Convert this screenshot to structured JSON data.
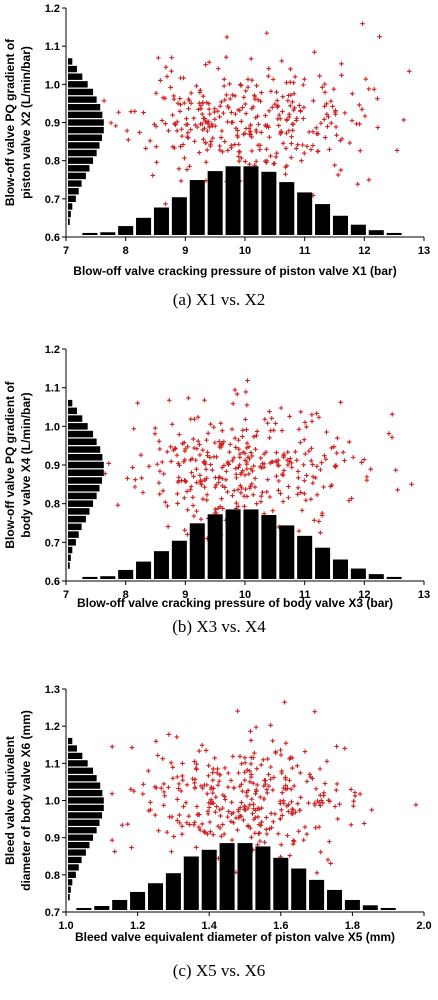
{
  "figure": {
    "captions": [
      "(a)  X1  vs.  X2",
      "(b)  X3  vs.  X4",
      "(c)  X5  vs.  X6"
    ]
  },
  "colors": {
    "scatter": "#cc2222",
    "bars": "#000000",
    "axis": "#000000"
  },
  "chart_data": [
    {
      "type": "scatter",
      "title": "",
      "xlabel": "Blow-off valve cracking pressure of piston valve X1 (bar)",
      "ylabel_lines": [
        "Blow-off valve PQ gradient of",
        "piston valve X2 (L/min/bar)"
      ],
      "xlim": [
        7,
        13
      ],
      "ylim": [
        0.6,
        1.2
      ],
      "xticks": [
        "7",
        "8",
        "9",
        "10",
        "11",
        "12",
        "13"
      ],
      "yticks": [
        "0.6",
        "0.7",
        "0.8",
        "0.9",
        "1.0",
        "1.1",
        "1.2"
      ],
      "marker": "+",
      "x_mean": 10.0,
      "x_sd": 0.95,
      "y_mean": 0.9,
      "y_sd": 0.075,
      "n_points": 360,
      "histogram_x": {
        "bin_centers": [
          7.4,
          7.7,
          8.0,
          8.3,
          8.6,
          8.9,
          9.2,
          9.5,
          9.8,
          10.1,
          10.4,
          10.7,
          11.0,
          11.3,
          11.6,
          11.9,
          12.2,
          12.5
        ],
        "relative_heights": [
          0.03,
          0.04,
          0.13,
          0.25,
          0.4,
          0.55,
          0.8,
          0.93,
          1.0,
          1.0,
          0.92,
          0.77,
          0.62,
          0.45,
          0.28,
          0.15,
          0.07,
          0.03
        ]
      },
      "histogram_y": {
        "bin_centers": [
          0.64,
          0.66,
          0.68,
          0.7,
          0.72,
          0.74,
          0.76,
          0.78,
          0.8,
          0.82,
          0.84,
          0.86,
          0.88,
          0.9,
          0.92,
          0.94,
          0.96,
          0.98,
          1.0,
          1.02,
          1.04,
          1.06
        ],
        "relative_heights": [
          0.05,
          0.08,
          0.12,
          0.22,
          0.3,
          0.38,
          0.5,
          0.6,
          0.7,
          0.8,
          0.88,
          0.95,
          1.0,
          1.0,
          0.96,
          0.9,
          0.8,
          0.7,
          0.55,
          0.4,
          0.25,
          0.12
        ]
      }
    },
    {
      "type": "scatter",
      "title": "",
      "xlabel": "Blow-off valve cracking pressure of body valve X3 (bar)",
      "ylabel_lines": [
        "Blow-off valve PQ gradient of",
        "body valve X4 (L/min/bar)"
      ],
      "xlim": [
        7,
        13
      ],
      "ylim": [
        0.6,
        1.2
      ],
      "xticks": [
        "7",
        "8",
        "9",
        "10",
        "11",
        "12",
        "13"
      ],
      "yticks": [
        "0.6",
        "0.7",
        "0.8",
        "0.9",
        "1.0",
        "1.1",
        "1.2"
      ],
      "marker": "+",
      "x_mean": 10.0,
      "x_sd": 0.95,
      "y_mean": 0.9,
      "y_sd": 0.075,
      "n_points": 360,
      "histogram_x": {
        "bin_centers": [
          7.4,
          7.7,
          8.0,
          8.3,
          8.6,
          8.9,
          9.2,
          9.5,
          9.8,
          10.1,
          10.4,
          10.7,
          11.0,
          11.3,
          11.6,
          11.9,
          12.2,
          12.5
        ],
        "relative_heights": [
          0.03,
          0.04,
          0.13,
          0.25,
          0.4,
          0.55,
          0.8,
          0.93,
          1.0,
          1.0,
          0.92,
          0.77,
          0.62,
          0.45,
          0.28,
          0.15,
          0.07,
          0.03
        ]
      },
      "histogram_y": {
        "bin_centers": [
          0.64,
          0.66,
          0.68,
          0.7,
          0.72,
          0.74,
          0.76,
          0.78,
          0.8,
          0.82,
          0.84,
          0.86,
          0.88,
          0.9,
          0.92,
          0.94,
          0.96,
          0.98,
          1.0,
          1.02,
          1.04,
          1.06
        ],
        "relative_heights": [
          0.05,
          0.08,
          0.12,
          0.22,
          0.3,
          0.38,
          0.5,
          0.6,
          0.7,
          0.8,
          0.88,
          0.95,
          1.0,
          1.0,
          0.96,
          0.9,
          0.8,
          0.7,
          0.55,
          0.4,
          0.25,
          0.12
        ]
      }
    },
    {
      "type": "scatter",
      "title": "",
      "xlabel": "Bleed valve equivalent diameter of piston valve X5 (mm)",
      "ylabel_lines": [
        "Bleed valve equivalent",
        "diameter of body valve X6 (mm)"
      ],
      "xlim": [
        1.0,
        2.0
      ],
      "ylim": [
        0.7,
        1.3
      ],
      "xticks": [
        "1.0",
        "1.2",
        "1.4",
        "1.6",
        "1.8",
        "2.0"
      ],
      "yticks": [
        "0.7",
        "0.8",
        "0.9",
        "1.0",
        "1.1",
        "1.2",
        "1.3"
      ],
      "marker": "+",
      "x_mean": 1.5,
      "x_sd": 0.15,
      "y_mean": 1.0,
      "y_sd": 0.08,
      "n_points": 360,
      "histogram_x": {
        "bin_centers": [
          1.05,
          1.1,
          1.15,
          1.2,
          1.25,
          1.3,
          1.35,
          1.4,
          1.45,
          1.5,
          1.55,
          1.6,
          1.65,
          1.7,
          1.75,
          1.8,
          1.85,
          1.9
        ],
        "relative_heights": [
          0.03,
          0.06,
          0.15,
          0.27,
          0.4,
          0.55,
          0.8,
          0.9,
          1.0,
          1.0,
          0.95,
          0.78,
          0.62,
          0.45,
          0.3,
          0.15,
          0.07,
          0.03
        ]
      },
      "histogram_y": {
        "bin_centers": [
          0.74,
          0.76,
          0.78,
          0.8,
          0.82,
          0.84,
          0.86,
          0.88,
          0.9,
          0.92,
          0.94,
          0.96,
          0.98,
          1.0,
          1.02,
          1.04,
          1.06,
          1.08,
          1.1,
          1.12,
          1.14,
          1.16
        ],
        "relative_heights": [
          0.05,
          0.08,
          0.12,
          0.22,
          0.3,
          0.38,
          0.5,
          0.6,
          0.7,
          0.8,
          0.88,
          0.95,
          1.0,
          1.0,
          0.96,
          0.9,
          0.8,
          0.7,
          0.55,
          0.4,
          0.25,
          0.12
        ]
      }
    }
  ]
}
